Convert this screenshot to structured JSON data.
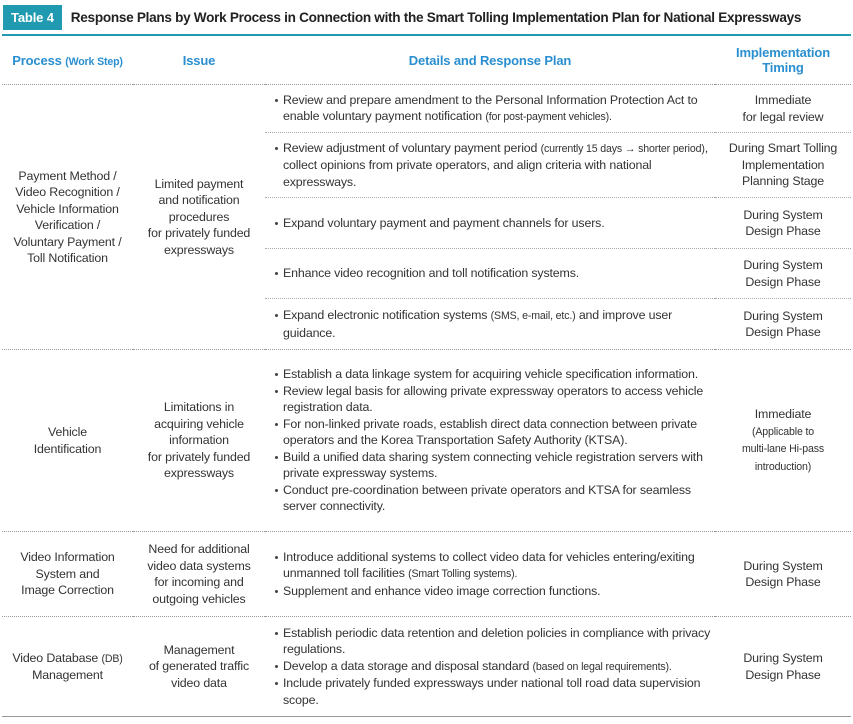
{
  "header": {
    "label": "Table 4",
    "title": "Response Plans by Work Process in Connection with the Smart Tolling Implementation Plan for National Expressways"
  },
  "table": {
    "columns": [
      [
        [
          "Process",
          {
            "small": "(Work Step)"
          }
        ]
      ],
      [
        "Issue"
      ],
      [
        "Details and Response Plan"
      ],
      [
        "Implementation",
        "Timing"
      ]
    ],
    "groups": [
      {
        "process": [
          "Payment Method /",
          "Video Recognition /",
          "Vehicle Information",
          "Verification /",
          "Voluntary Payment /",
          "Toll Notification"
        ],
        "issue": [
          "Limited payment",
          "and notification",
          "procedures",
          "for privately funded",
          "expressways"
        ],
        "rows": [
          {
            "details": [
              [
                "Review and prepare amendment to the Personal Information Protection Act to enable voluntary payment notification",
                {
                  "small": "(for post-payment vehicles)."
                }
              ]
            ],
            "timing": [
              "Immediate",
              "for legal review"
            ]
          },
          {
            "details": [
              [
                "Review adjustment of voluntary payment period",
                {
                  "small": "(currently 15 days → shorter period)"
                },
                ", collect opinions from private operators, and align criteria with national expressways."
              ]
            ],
            "timing": [
              "During Smart Tolling",
              "Implementation",
              "Planning Stage"
            ]
          },
          {
            "details": [
              [
                "Expand voluntary payment and payment channels for users."
              ]
            ],
            "timing": [
              "During System",
              "Design Phase"
            ]
          },
          {
            "details": [
              [
                "Enhance video recognition and toll notification systems."
              ]
            ],
            "timing": [
              "During System",
              "Design Phase"
            ]
          },
          {
            "details": [
              [
                "Expand electronic notification systems",
                {
                  "small": "(SMS, e-mail, etc.)"
                },
                "and improve user guidance."
              ]
            ],
            "timing": [
              "During System",
              "Design Phase"
            ]
          }
        ]
      },
      {
        "process": [
          "Vehicle",
          "Identification"
        ],
        "issue": [
          "Limitations in",
          "acquiring vehicle",
          "information",
          "for privately funded",
          "expressways"
        ],
        "rows": [
          {
            "details": [
              [
                "Establish a data linkage system for acquiring vehicle specification information."
              ],
              [
                "Review legal basis for allowing private expressway operators to access vehicle registration data."
              ],
              [
                "For non-linked private roads, establish direct data connection between private operators and the Korea Transportation Safety Authority (KTSA)."
              ],
              [
                "Build a unified data sharing system connecting vehicle registration servers with private expressway systems."
              ],
              [
                "Conduct pre-coordination between private operators and KTSA for seamless server connectivity."
              ]
            ],
            "timing": [
              "Immediate",
              {
                "small": "(Applicable to"
              },
              {
                "small": "multi-lane Hi-pass"
              },
              {
                "small": "introduction)"
              }
            ]
          }
        ]
      },
      {
        "process": [
          "Video Information",
          "System and",
          "Image Correction"
        ],
        "issue": [
          "Need for additional",
          "video data systems",
          "for incoming and",
          "outgoing vehicles"
        ],
        "rows": [
          {
            "details": [
              [
                "Introduce additional systems to collect video data for vehicles entering/exiting unmanned toll facilities",
                {
                  "small": "(Smart Tolling systems)."
                }
              ],
              [
                "Supplement and enhance video image correction functions."
              ]
            ],
            "timing": [
              "During System",
              "Design Phase"
            ]
          }
        ]
      },
      {
        "process": [
          [
            "Video Database",
            {
              "small": "(DB)"
            }
          ],
          "Management"
        ],
        "issue": [
          "Management",
          "of generated traffic",
          "video data"
        ],
        "rows": [
          {
            "details": [
              [
                "Establish periodic data retention and deletion policies in compliance with privacy regulations."
              ],
              [
                "Develop a data storage and disposal standard",
                {
                  "small": "(based on legal requirements)."
                }
              ],
              [
                "Include privately funded expressways under national toll road data supervision scope."
              ]
            ],
            "timing": [
              "During System",
              "Design Phase"
            ]
          }
        ]
      }
    ]
  }
}
